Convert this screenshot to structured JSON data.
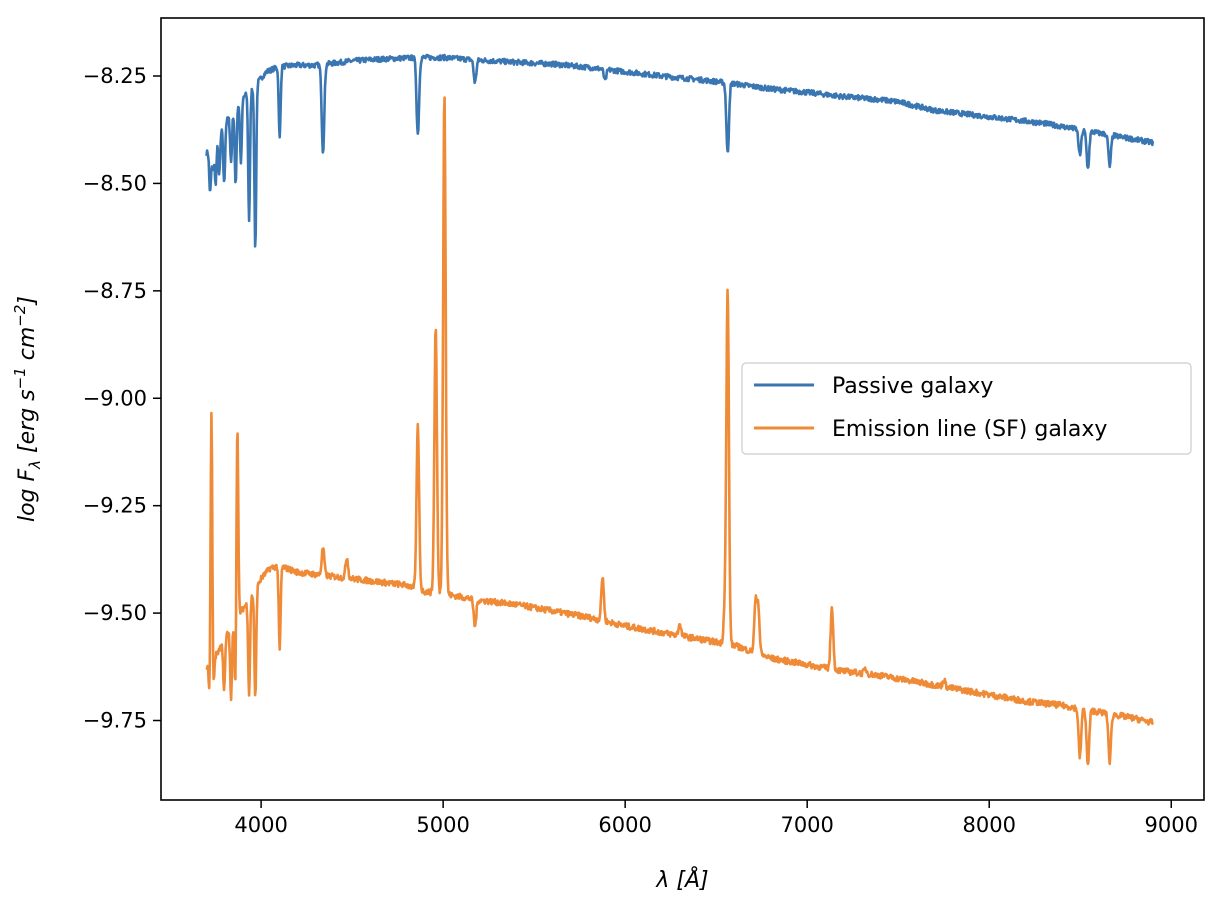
{
  "chart_data": {
    "type": "line",
    "title": "",
    "xlabel": "λ [Å]",
    "ylabel": "log F_λ [erg s^-1 cm^-2]",
    "xlim": [
      3450,
      9180
    ],
    "ylim": [
      -9.935,
      -8.115
    ],
    "xticks": [
      4000,
      5000,
      6000,
      7000,
      8000,
      9000
    ],
    "xtick_labels": [
      "4000",
      "5000",
      "6000",
      "7000",
      "8000",
      "9000"
    ],
    "yticks": [
      -8.25,
      -8.5,
      -8.75,
      -9.0,
      -9.25,
      -9.5,
      -9.75
    ],
    "ytick_labels": [
      "−8.25",
      "−8.50",
      "−8.75",
      "−9.00",
      "−9.25",
      "−9.50",
      "−9.75"
    ],
    "grid": false,
    "legend_position": "center-right",
    "series": [
      {
        "name": "Passive galaxy",
        "color": "#3a76b1",
        "continuum": [
          [
            3700,
            -8.43
          ],
          [
            3750,
            -8.4
          ],
          [
            3800,
            -8.36
          ],
          [
            3850,
            -8.33
          ],
          [
            3900,
            -8.3
          ],
          [
            3950,
            -8.28
          ],
          [
            4000,
            -8.255
          ],
          [
            4030,
            -8.24
          ],
          [
            4100,
            -8.228
          ],
          [
            4200,
            -8.225
          ],
          [
            4300,
            -8.225
          ],
          [
            4400,
            -8.22
          ],
          [
            4500,
            -8.215
          ],
          [
            4600,
            -8.212
          ],
          [
            4700,
            -8.21
          ],
          [
            4800,
            -8.208
          ],
          [
            4900,
            -8.207
          ],
          [
            5000,
            -8.207
          ],
          [
            5200,
            -8.213
          ],
          [
            5400,
            -8.218
          ],
          [
            5600,
            -8.222
          ],
          [
            5800,
            -8.23
          ],
          [
            6000,
            -8.24
          ],
          [
            6200,
            -8.25
          ],
          [
            6400,
            -8.258
          ],
          [
            6600,
            -8.268
          ],
          [
            6800,
            -8.28
          ],
          [
            7000,
            -8.288
          ],
          [
            7200,
            -8.298
          ],
          [
            7400,
            -8.305
          ],
          [
            7500,
            -8.31
          ],
          [
            7700,
            -8.33
          ],
          [
            7900,
            -8.34
          ],
          [
            8100,
            -8.35
          ],
          [
            8300,
            -8.36
          ],
          [
            8500,
            -8.375
          ],
          [
            8700,
            -8.39
          ],
          [
            8900,
            -8.405
          ]
        ],
        "lines": [
          [
            3720,
            -8.52
          ],
          [
            3735,
            -8.47
          ],
          [
            3750,
            -8.5
          ],
          [
            3770,
            -8.48
          ],
          [
            3797,
            -8.5
          ],
          [
            3835,
            -8.45
          ],
          [
            3860,
            -8.505
          ],
          [
            3889,
            -8.45
          ],
          [
            3934,
            -8.585
          ],
          [
            3968,
            -8.65
          ],
          [
            4102,
            -8.395
          ],
          [
            4340,
            -8.425
          ],
          [
            4861,
            -8.385
          ],
          [
            5175,
            -8.265
          ],
          [
            5890,
            -8.26
          ],
          [
            6563,
            -8.43
          ],
          [
            8498,
            -8.435
          ],
          [
            8542,
            -8.465
          ],
          [
            8662,
            -8.46
          ]
        ]
      },
      {
        "name": "Emission line (SF) galaxy",
        "color": "#ef8a37",
        "continuum": [
          [
            3700,
            -9.63
          ],
          [
            3750,
            -9.6
          ],
          [
            3800,
            -9.56
          ],
          [
            3850,
            -9.52
          ],
          [
            3900,
            -9.49
          ],
          [
            3950,
            -9.46
          ],
          [
            4000,
            -9.42
          ],
          [
            4050,
            -9.395
          ],
          [
            4100,
            -9.39
          ],
          [
            4200,
            -9.405
          ],
          [
            4300,
            -9.41
          ],
          [
            4400,
            -9.415
          ],
          [
            4500,
            -9.42
          ],
          [
            4600,
            -9.425
          ],
          [
            4700,
            -9.43
          ],
          [
            4800,
            -9.435
          ],
          [
            4900,
            -9.45
          ],
          [
            5000,
            -9.455
          ],
          [
            5200,
            -9.47
          ],
          [
            5400,
            -9.48
          ],
          [
            5600,
            -9.495
          ],
          [
            5800,
            -9.51
          ],
          [
            6000,
            -9.53
          ],
          [
            6200,
            -9.545
          ],
          [
            6400,
            -9.56
          ],
          [
            6600,
            -9.575
          ],
          [
            6800,
            -9.605
          ],
          [
            7000,
            -9.62
          ],
          [
            7200,
            -9.635
          ],
          [
            7400,
            -9.645
          ],
          [
            7600,
            -9.66
          ],
          [
            7800,
            -9.675
          ],
          [
            8000,
            -9.69
          ],
          [
            8200,
            -9.705
          ],
          [
            8400,
            -9.715
          ],
          [
            8600,
            -9.73
          ],
          [
            8800,
            -9.745
          ],
          [
            8900,
            -9.755
          ]
        ],
        "absorption": [
          [
            3720,
            -9.76
          ],
          [
            3735,
            -9.73
          ],
          [
            3797,
            -9.68
          ],
          [
            3835,
            -9.7
          ],
          [
            3860,
            -9.715
          ],
          [
            3934,
            -9.69
          ],
          [
            3968,
            -9.7
          ],
          [
            4102,
            -9.53
          ],
          [
            4340,
            -9.635
          ],
          [
            4861,
            -9.565
          ],
          [
            5175,
            -9.53
          ],
          [
            6563,
            -9.695
          ],
          [
            8498,
            -9.835
          ],
          [
            8542,
            -9.855
          ],
          [
            8662,
            -9.845
          ]
        ],
        "emission": [
          [
            3727,
            -8.945
          ],
          [
            3869,
            -9.03
          ],
          [
            4102,
            -9.445
          ],
          [
            4340,
            -9.125
          ],
          [
            4471,
            -9.37
          ],
          [
            4861,
            -8.945
          ],
          [
            4959,
            -8.83
          ],
          [
            5007,
            -8.285
          ],
          [
            5876,
            -9.415
          ],
          [
            6300,
            -9.525
          ],
          [
            6548,
            -9.49
          ],
          [
            6563,
            -8.63
          ],
          [
            6716,
            -9.48
          ],
          [
            6731,
            -9.485
          ],
          [
            7136,
            -9.485
          ],
          [
            7320,
            -9.63
          ],
          [
            7751,
            -9.655
          ]
        ]
      }
    ]
  }
}
